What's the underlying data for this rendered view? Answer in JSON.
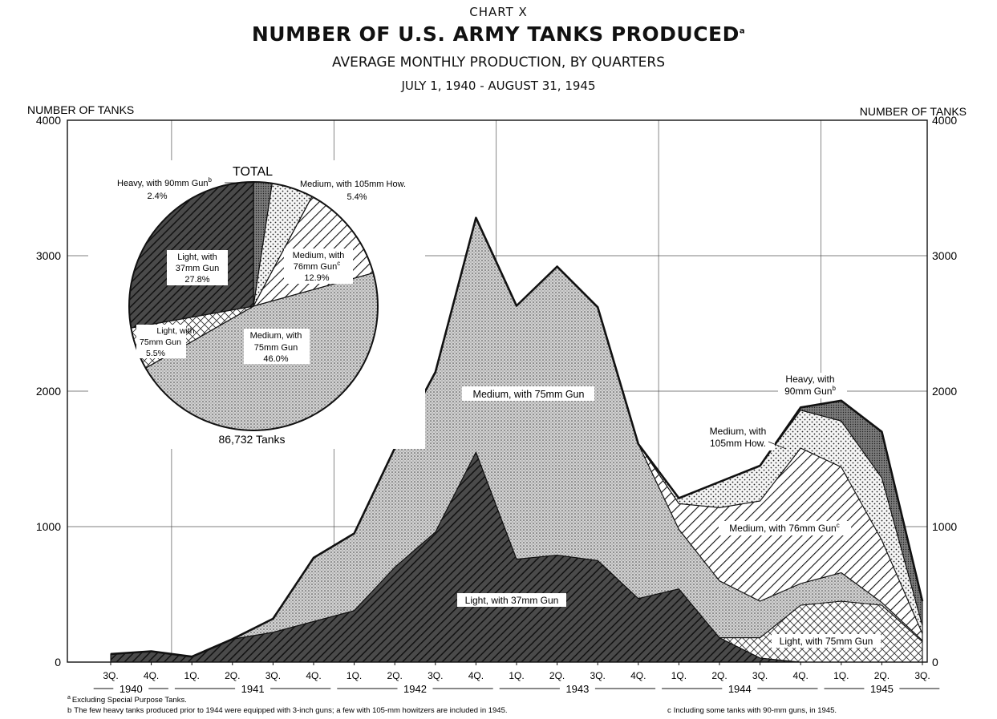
{
  "header": {
    "chart_label": "CHART X",
    "title": "NUMBER OF U.S. ARMY TANKS PRODUCED",
    "title_note": "a",
    "subtitle": "AVERAGE MONTHLY PRODUCTION, BY QUARTERS",
    "period": "JULY 1, 1940 - AUGUST 31, 1945"
  },
  "chart_data": [
    {
      "type": "area",
      "stacked": true,
      "ylabel_left": "NUMBER OF TANKS",
      "ylabel_right": "NUMBER OF TANKS",
      "ylim": [
        0,
        4000
      ],
      "yticks": [
        "0",
        "1000",
        "2000",
        "3000",
        "4000"
      ],
      "grid": true,
      "categories": [
        "3Q.",
        "4Q.",
        "1Q.",
        "2Q.",
        "3Q.",
        "4Q.",
        "1Q.",
        "2Q.",
        "3Q.",
        "4Q.",
        "1Q.",
        "2Q.",
        "3Q.",
        "4Q.",
        "1Q.",
        "2Q.",
        "3Q.",
        "4Q.",
        "1Q.",
        "2Q.",
        "3Q."
      ],
      "years": [
        "1940",
        "1941",
        "1942",
        "1943",
        "1944",
        "1945"
      ],
      "series": [
        {
          "name": "Light, with 37mm Gun",
          "values": [
            60,
            80,
            40,
            170,
            220,
            300,
            380,
            700,
            960,
            1550,
            760,
            790,
            750,
            470,
            540,
            180,
            30,
            0,
            0,
            0,
            0
          ],
          "color": "#3a3a3a"
        },
        {
          "name": "Light, with 75mm Gun",
          "values": [
            0,
            0,
            0,
            0,
            0,
            0,
            0,
            0,
            0,
            0,
            0,
            0,
            0,
            0,
            0,
            0,
            150,
            420,
            450,
            420,
            150
          ],
          "color": "#ffffff"
        },
        {
          "name": "Medium, with 75mm Gun",
          "values": [
            0,
            0,
            0,
            0,
            100,
            470,
            570,
            880,
            1180,
            1730,
            1870,
            2130,
            1870,
            1140,
            440,
            420,
            270,
            160,
            210,
            20,
            10
          ],
          "color": "#c9c9c9"
        },
        {
          "name": "Medium, with 76mm Gun",
          "values": [
            0,
            0,
            0,
            0,
            0,
            0,
            0,
            0,
            0,
            0,
            0,
            0,
            0,
            0,
            190,
            540,
            740,
            1000,
            780,
            460,
            50
          ],
          "color": "#ffffff"
        },
        {
          "name": "Medium, with 105mm How.",
          "values": [
            0,
            0,
            0,
            0,
            0,
            0,
            0,
            0,
            0,
            0,
            0,
            0,
            0,
            0,
            40,
            190,
            260,
            280,
            340,
            460,
            60
          ],
          "color": "#e8e8e8"
        },
        {
          "name": "Heavy, with 90mm Gun",
          "values": [
            0,
            0,
            0,
            0,
            0,
            0,
            0,
            0,
            0,
            0,
            0,
            0,
            0,
            0,
            0,
            0,
            0,
            20,
            150,
            340,
            180
          ],
          "color": "#8a8a8a"
        }
      ],
      "labels": {
        "medium75": "Medium, with 75mm Gun",
        "light37": "Light, with 37mm Gun",
        "light75": "Light, with 75mm Gun",
        "medium76": "Medium, with 76mm Gun",
        "medium76_note": "c",
        "medium105_line1": "Medium, with",
        "medium105_line2": "105mm How.",
        "heavy_line1": "Heavy, with",
        "heavy_line2": "90mm Gun",
        "heavy_note": "b"
      }
    },
    {
      "type": "pie",
      "title": "TOTAL",
      "total_label": "86,732  Tanks",
      "slices": [
        {
          "name": "Heavy, with 90mm Gun",
          "value": 2.4,
          "pct": "2.4%",
          "note": "b",
          "color": "#777777"
        },
        {
          "name": "Medium, with 105mm How.",
          "value": 5.4,
          "pct": "5.4%",
          "color": "#e8e8e8"
        },
        {
          "name": "Medium, with 76mm Gun",
          "value": 12.9,
          "pct": "12.9%",
          "note": "c",
          "color": "#ffffff"
        },
        {
          "name": "Medium, with 75mm Gun",
          "value": 46.0,
          "pct": "46.0%",
          "color": "#dcdcdc"
        },
        {
          "name": "Light, with 75mm Gun",
          "value": 5.5,
          "pct": "5.5%",
          "color": "#ffffff"
        },
        {
          "name": "Light, with 37mm Gun",
          "value": 27.8,
          "pct": "27.8%",
          "color": "#444444"
        }
      ],
      "labels": {
        "heavy": "Heavy, with 90mm Gun",
        "heavy_pct": "2.4%",
        "med105": "Medium, with 105mm How.",
        "med105_pct": "5.4%",
        "med76_l1": "Medium, with",
        "med76_l2": "76mm Gun",
        "med76_pct": "12.9%",
        "med75_l1": "Medium, with",
        "med75_l2": "75mm Gun",
        "med75_pct": "46.0%",
        "light75_l1": "Light, with",
        "light75_l2": "75mm Gun",
        "light75_pct": "5.5%",
        "light37_l1": "Light, with",
        "light37_l2": "37mm Gun",
        "light37_pct": "27.8%"
      }
    }
  ],
  "footnotes": {
    "a": "Excluding Special Purpose Tanks.",
    "b": "The few heavy tanks produced prior to 1944 were equipped with 3-inch guns; a few with 105-mm howitzers are included in 1945.",
    "c": "Including some tanks with 90-mm guns, in 1945."
  }
}
